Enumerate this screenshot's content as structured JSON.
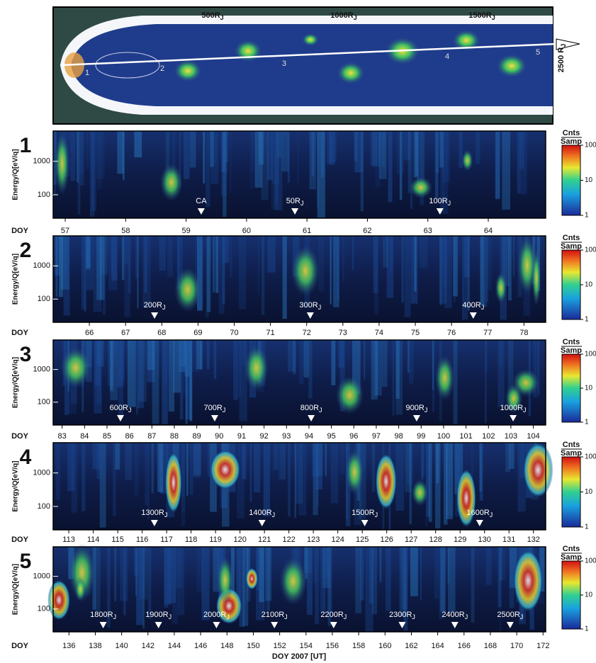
{
  "diagram": {
    "distance_labels": [
      "500RJ",
      "1000RJ",
      "1500RJ"
    ],
    "end_label": "2500 RJ",
    "regions": [
      "1",
      "2",
      "3",
      "4",
      "5"
    ]
  },
  "x_axis_label": "DOY 2007 [UT]",
  "chart_data": [
    {
      "type": "heatmap",
      "panel": "1",
      "ylabel": "Energy/Q[eV/q]",
      "xlabel": "DOY",
      "log_y": true,
      "ylim": [
        20,
        8000
      ],
      "yticks": [
        100,
        1000
      ],
      "xlim": [
        56.8,
        64.95
      ],
      "xticks": [
        57,
        58,
        59,
        60,
        61,
        62,
        63,
        64
      ],
      "annotations": [
        {
          "x": 59.25,
          "label": "CA"
        },
        {
          "x": 60.8,
          "label": "50RJ"
        },
        {
          "x": 63.2,
          "label": "100RJ"
        }
      ],
      "colorbar": {
        "label": [
          "Cnts",
          "Samp"
        ],
        "lim": [
          1,
          100
        ],
        "ticks": [
          1,
          10,
          100
        ]
      }
    },
    {
      "type": "heatmap",
      "panel": "2",
      "ylabel": "Energy/Q[eV/q]",
      "xlabel": "DOY",
      "log_y": true,
      "ylim": [
        20,
        8000
      ],
      "yticks": [
        100,
        1000
      ],
      "xlim": [
        65.0,
        78.6
      ],
      "xticks": [
        66,
        67,
        68,
        69,
        70,
        71,
        72,
        73,
        74,
        75,
        76,
        77,
        78
      ],
      "annotations": [
        {
          "x": 67.8,
          "label": "200RJ"
        },
        {
          "x": 72.1,
          "label": "300RJ"
        },
        {
          "x": 76.6,
          "label": "400RJ"
        }
      ],
      "colorbar": {
        "label": [
          "Cnts",
          "Samp"
        ],
        "lim": [
          1,
          100
        ],
        "ticks": [
          1,
          10,
          100
        ]
      }
    },
    {
      "type": "heatmap",
      "panel": "3",
      "ylabel": "Energy/Q[eV/q]",
      "xlabel": "DOY",
      "log_y": true,
      "ylim": [
        20,
        8000
      ],
      "yticks": [
        100,
        1000
      ],
      "xlim": [
        82.6,
        104.55
      ],
      "xticks": [
        83,
        84,
        85,
        86,
        87,
        88,
        89,
        90,
        91,
        92,
        93,
        94,
        95,
        96,
        97,
        98,
        99,
        100,
        101,
        102,
        103,
        104
      ],
      "annotations": [
        {
          "x": 85.6,
          "label": "600RJ"
        },
        {
          "x": 89.8,
          "label": "700RJ"
        },
        {
          "x": 94.1,
          "label": "800RJ"
        },
        {
          "x": 98.8,
          "label": "900RJ"
        },
        {
          "x": 103.1,
          "label": "1000RJ"
        }
      ],
      "colorbar": {
        "label": [
          "Cnts",
          "Samp"
        ],
        "lim": [
          1,
          100
        ],
        "ticks": [
          1,
          10,
          100
        ]
      }
    },
    {
      "type": "heatmap",
      "panel": "4",
      "ylabel": "Energy/Q[eV/q]",
      "xlabel": "DOY",
      "log_y": true,
      "ylim": [
        20,
        8000
      ],
      "yticks": [
        100,
        1000
      ],
      "xlim": [
        112.36,
        132.5
      ],
      "xticks": [
        113,
        114,
        115,
        116,
        117,
        118,
        119,
        120,
        121,
        122,
        123,
        124,
        125,
        126,
        127,
        128,
        129,
        130,
        131,
        132
      ],
      "annotations": [
        {
          "x": 116.5,
          "label": "1300RJ"
        },
        {
          "x": 120.9,
          "label": "1400RJ"
        },
        {
          "x": 125.1,
          "label": "1500RJ"
        },
        {
          "x": 129.8,
          "label": "1600RJ"
        }
      ],
      "colorbar": {
        "label": [
          "Cnts",
          "Samp"
        ],
        "lim": [
          1,
          100
        ],
        "ticks": [
          1,
          10,
          100
        ]
      }
    },
    {
      "type": "heatmap",
      "panel": "5",
      "ylabel": "Energy/Q[eV/q]",
      "xlabel": "DOY",
      "log_y": true,
      "ylim": [
        20,
        8000
      ],
      "yticks": [
        100,
        1000
      ],
      "xlim": [
        134.8,
        172.2
      ],
      "xticks": [
        136,
        138,
        140,
        142,
        144,
        146,
        148,
        150,
        152,
        154,
        156,
        158,
        160,
        162,
        164,
        166,
        168,
        170,
        172
      ],
      "annotations": [
        {
          "x": 138.6,
          "label": "1800RJ"
        },
        {
          "x": 142.8,
          "label": "1900RJ"
        },
        {
          "x": 147.2,
          "label": "2000RJ"
        },
        {
          "x": 151.6,
          "label": "2100RJ"
        },
        {
          "x": 156.1,
          "label": "2200RJ"
        },
        {
          "x": 161.3,
          "label": "2300RJ"
        },
        {
          "x": 165.3,
          "label": "2400RJ"
        },
        {
          "x": 169.5,
          "label": "2500RJ"
        }
      ],
      "colorbar": {
        "label": [
          "Cnts",
          "Samp"
        ],
        "lim": [
          1,
          100
        ],
        "ticks": [
          1,
          10,
          100
        ]
      }
    }
  ]
}
